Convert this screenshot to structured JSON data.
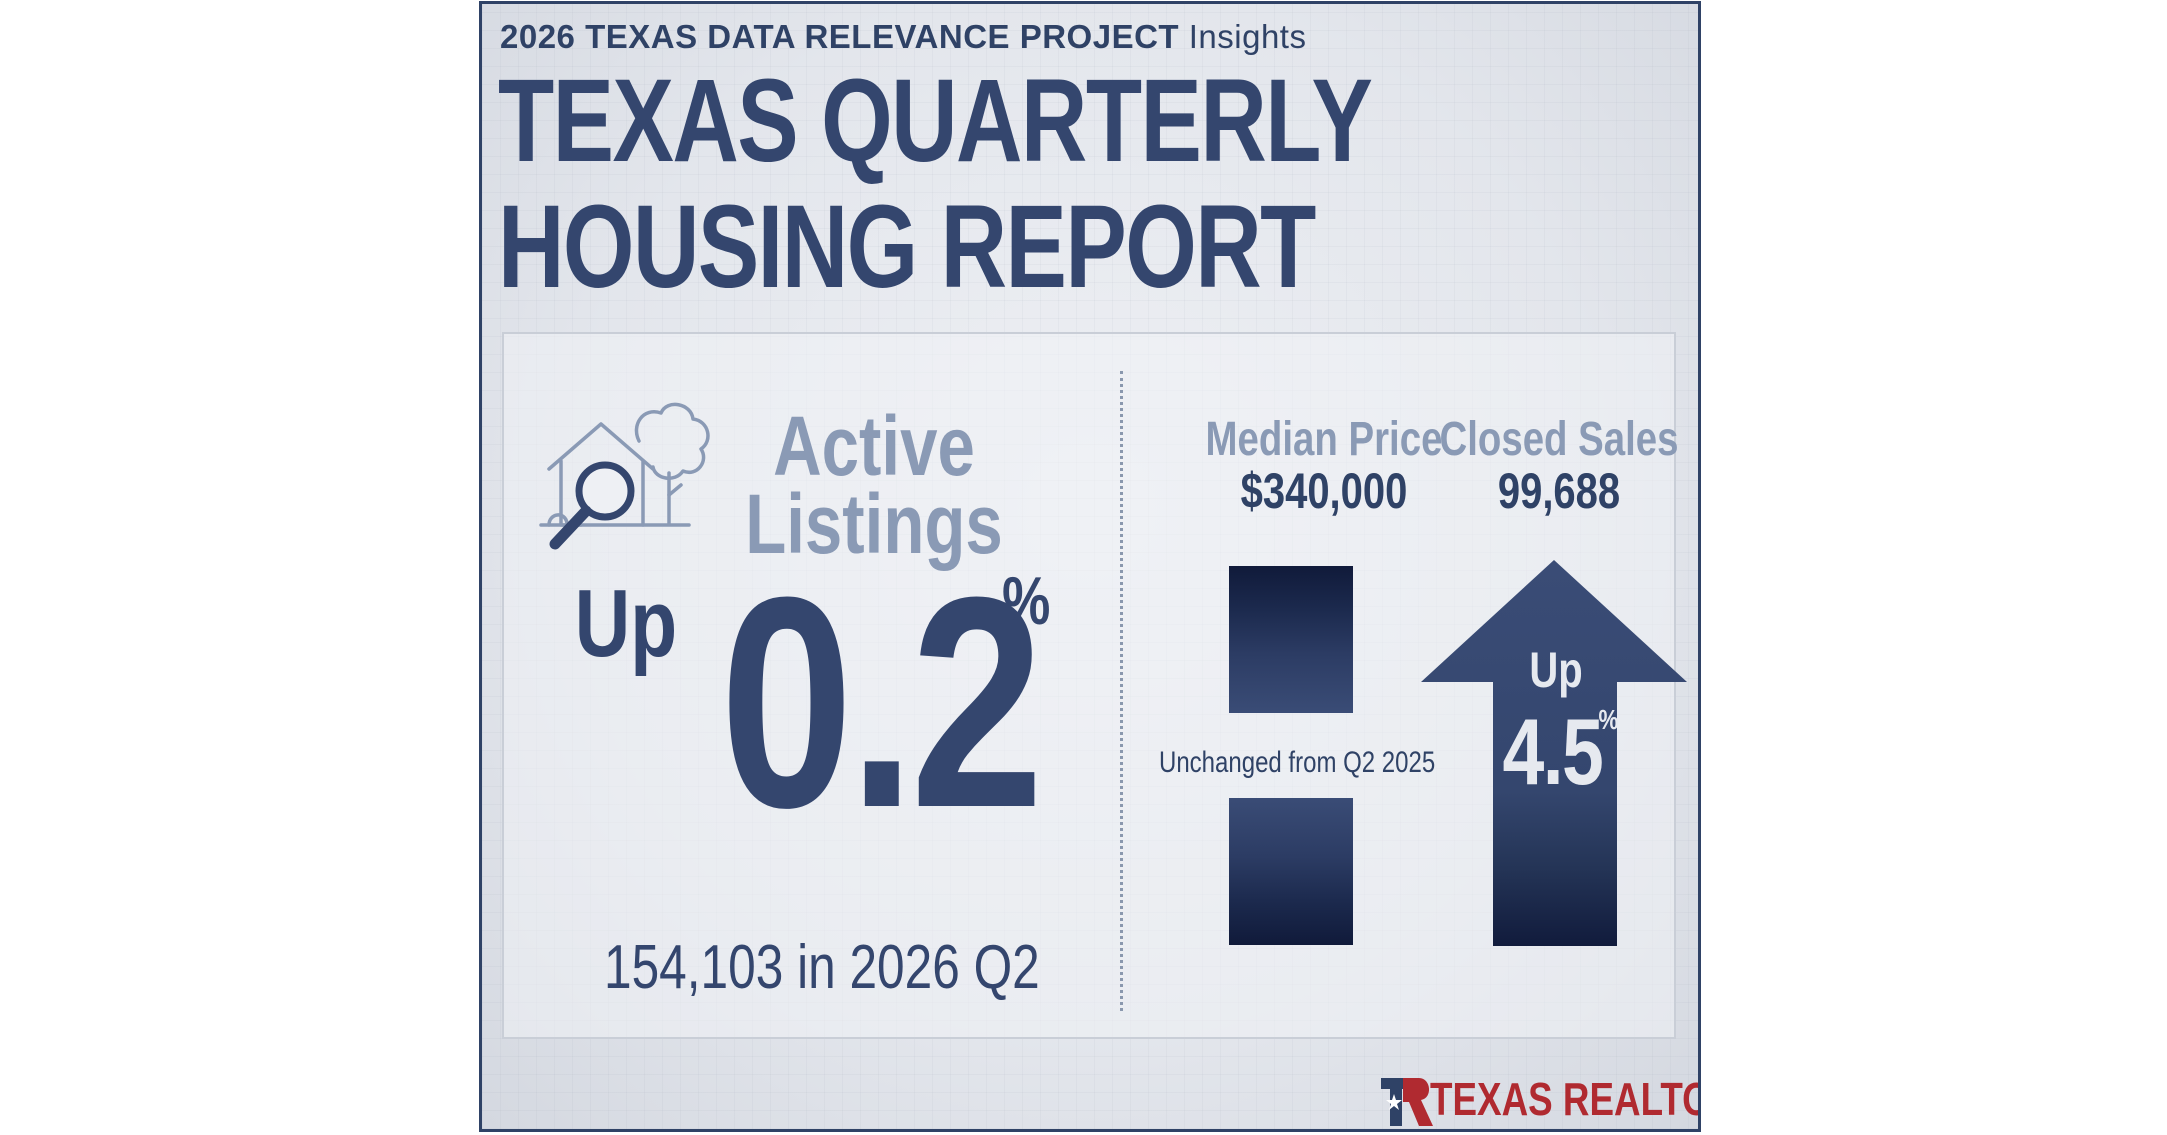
{
  "header": {
    "kicker_bold": "2026 TEXAS DATA RELEVANCE PROJECT",
    "kicker_light": "Insights",
    "title_line1": "TEXAS QUARTERLY",
    "title_line2": "HOUSING REPORT"
  },
  "active_listings": {
    "label_line1": "Active",
    "label_line2": "Listings",
    "direction": "Up",
    "change_value": "0.2",
    "change_unit": "%",
    "detail": "154,103 in 2026 Q2",
    "icon": "house-search-icon"
  },
  "median_price": {
    "label": "Median Price",
    "value": "$340,000",
    "note": "Unchanged from Q2 2025"
  },
  "closed_sales": {
    "label": "Closed Sales",
    "value": "99,688",
    "direction": "Up",
    "change_value": "4.5",
    "change_unit": "%"
  },
  "brand": {
    "name": "TEXAS REALTORS",
    "mark": "®",
    "logo_icon": "tr-logo-icon"
  },
  "colors": {
    "navy": "#34466e",
    "muted_blue": "#8a9ab5",
    "brand_red": "#b02a30",
    "frame": "#2f4266"
  }
}
